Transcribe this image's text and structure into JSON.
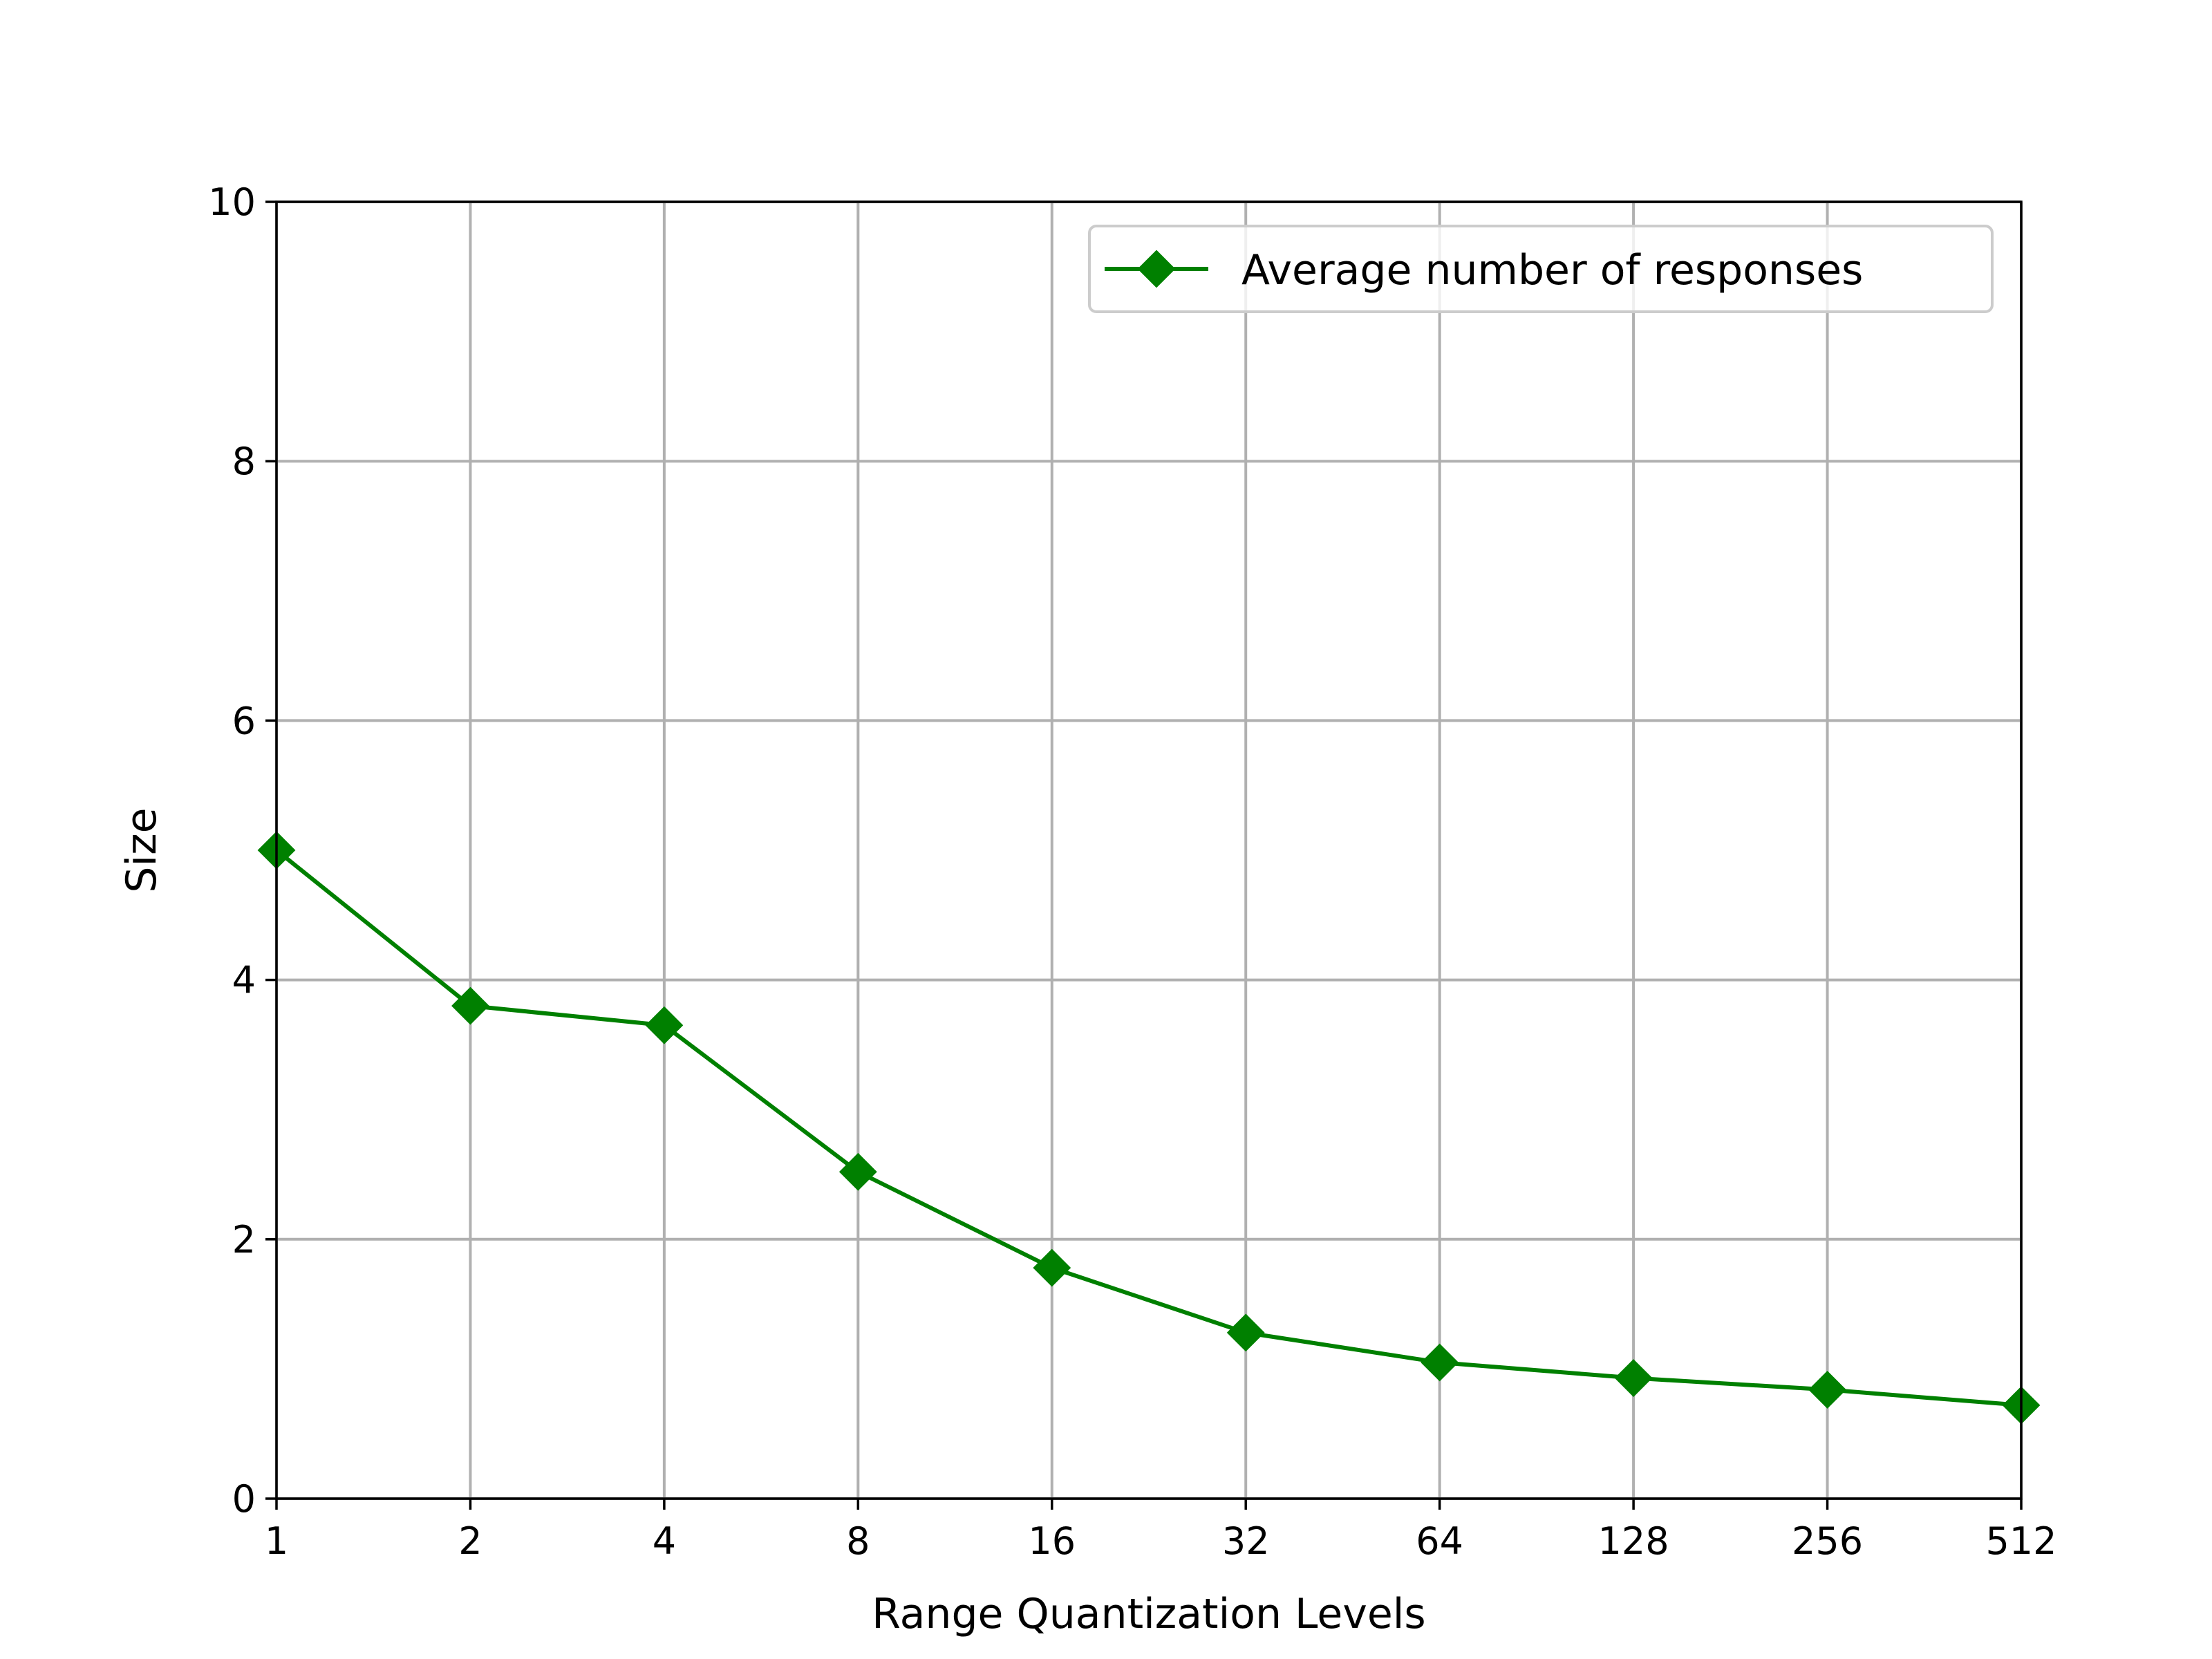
{
  "chart_data": {
    "type": "line",
    "title": "",
    "xlabel": "Range Quantization Levels",
    "ylabel": "Size",
    "x_scale": "log2",
    "x": [
      1,
      2,
      4,
      8,
      16,
      32,
      64,
      128,
      256,
      512
    ],
    "x_tick_labels": [
      "1",
      "2",
      "4",
      "8",
      "16",
      "32",
      "64",
      "128",
      "256",
      "512"
    ],
    "y_ticks": [
      0,
      2,
      4,
      6,
      8,
      10
    ],
    "y_tick_labels": [
      "0",
      "2",
      "4",
      "6",
      "8",
      "10"
    ],
    "xlim": [
      1,
      512
    ],
    "ylim": [
      0,
      10
    ],
    "grid": true,
    "legend_position": "top-right",
    "series": [
      {
        "name": "Average number of responses",
        "color": "#008000",
        "marker": "diamond",
        "values": [
          5.0,
          3.8,
          3.65,
          2.52,
          1.78,
          1.28,
          1.05,
          0.93,
          0.84,
          0.72
        ]
      }
    ]
  }
}
